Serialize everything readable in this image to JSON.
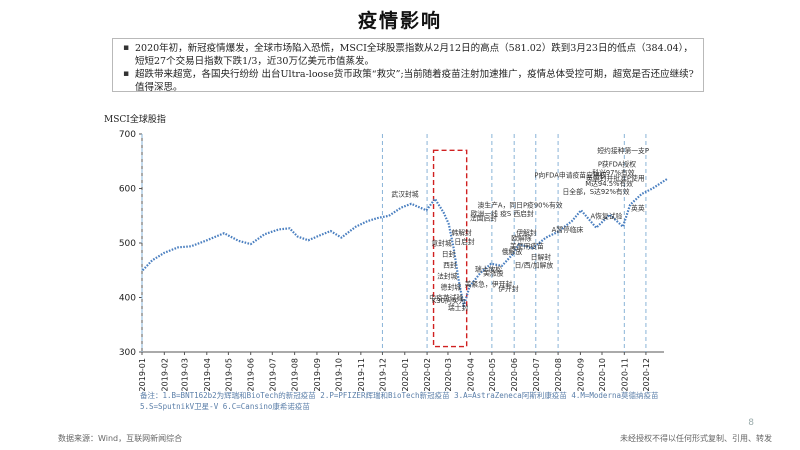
{
  "page": {
    "title": "疫情影响",
    "bullets": [
      "2020年初，新冠疫情爆发，全球市场陷入恐慌，MSCI全球股票指数从2月12日的高点（581.02）跌到3月23日的低点（384.04），短短27个交易日指数下跌1/3，近30万亿美元市值蒸发。",
      "超跌带来超宽，各国央行纷纷 出台Ultra-loose货币政策“救灾”;当前随着疫苗注射加速推广，疫情总体受控可期，超宽是否还应继续?值得深思。"
    ],
    "notes": [
      "备注：1.B=BNT162b2为辉瑞和BioTech的新冠疫苗  2.P=PFIZER辉瑞和BioTech新冠疫苗  3.A=AstraZeneca阿斯利康疫苗  4.M=Moderna莫德纳疫苗",
      "5.S=SputnikV卫星-V 6.C=Cansino康希诺疫苗"
    ],
    "source": "数据来源：Wind，互联网新闻综合",
    "copyright": "未经授权不得以任何形式复制、引用、转发",
    "page_number": "8"
  },
  "chart_data": {
    "type": "line",
    "ylabel": "MSCI全球股指",
    "ylim": [
      300,
      700
    ],
    "yticks": [
      300,
      400,
      500,
      600,
      700
    ],
    "grid": false,
    "line_style": "dotted",
    "colors": {
      "line": "#4a7fc0",
      "vline": "#8ab4d8",
      "box": "#d02020",
      "annotation": "#333333"
    },
    "x_ticks": [
      "2019-01",
      "2019-02",
      "2019-03",
      "2019-04",
      "2019-05",
      "2019-06",
      "2019-07",
      "2019-08",
      "2019-09",
      "2019-10",
      "2019-11",
      "2019-12",
      "2020-01",
      "2020-02",
      "2020-03",
      "2020-04",
      "2020-05",
      "2020-06",
      "2020-07",
      "2020-08",
      "2020-09",
      "2020-10",
      "2020-11",
      "2020-12"
    ],
    "series": [
      {
        "values": [
          {
            "x": "2019-01-02",
            "y": 450
          },
          {
            "x": "2019-01-15",
            "y": 468
          },
          {
            "x": "2019-02-01",
            "y": 482
          },
          {
            "x": "2019-02-20",
            "y": 492
          },
          {
            "x": "2019-03-10",
            "y": 494
          },
          {
            "x": "2019-04-01",
            "y": 505
          },
          {
            "x": "2019-04-25",
            "y": 518
          },
          {
            "x": "2019-05-15",
            "y": 504
          },
          {
            "x": "2019-06-01",
            "y": 498
          },
          {
            "x": "2019-06-20",
            "y": 516
          },
          {
            "x": "2019-07-10",
            "y": 525
          },
          {
            "x": "2019-07-25",
            "y": 527
          },
          {
            "x": "2019-08-05",
            "y": 512
          },
          {
            "x": "2019-08-20",
            "y": 505
          },
          {
            "x": "2019-09-05",
            "y": 514
          },
          {
            "x": "2019-09-20",
            "y": 522
          },
          {
            "x": "2019-10-05",
            "y": 510
          },
          {
            "x": "2019-10-25",
            "y": 530
          },
          {
            "x": "2019-11-10",
            "y": 540
          },
          {
            "x": "2019-11-25",
            "y": 546
          },
          {
            "x": "2019-12-10",
            "y": 550
          },
          {
            "x": "2019-12-27",
            "y": 565
          },
          {
            "x": "2020-01-10",
            "y": 572
          },
          {
            "x": "2020-01-31",
            "y": 560
          },
          {
            "x": "2020-02-12",
            "y": 581
          },
          {
            "x": "2020-02-24",
            "y": 556
          },
          {
            "x": "2020-03-02",
            "y": 535
          },
          {
            "x": "2020-03-09",
            "y": 490
          },
          {
            "x": "2020-03-16",
            "y": 430
          },
          {
            "x": "2020-03-23",
            "y": 384
          },
          {
            "x": "2020-03-31",
            "y": 420
          },
          {
            "x": "2020-04-15",
            "y": 445
          },
          {
            "x": "2020-04-30",
            "y": 462
          },
          {
            "x": "2020-05-15",
            "y": 458
          },
          {
            "x": "2020-05-29",
            "y": 478
          },
          {
            "x": "2020-06-08",
            "y": 498
          },
          {
            "x": "2020-06-26",
            "y": 490
          },
          {
            "x": "2020-07-15",
            "y": 510
          },
          {
            "x": "2020-07-31",
            "y": 520
          },
          {
            "x": "2020-08-20",
            "y": 540
          },
          {
            "x": "2020-09-02",
            "y": 560
          },
          {
            "x": "2020-09-23",
            "y": 528
          },
          {
            "x": "2020-10-12",
            "y": 552
          },
          {
            "x": "2020-10-30",
            "y": 530
          },
          {
            "x": "2020-11-09",
            "y": 570
          },
          {
            "x": "2020-11-25",
            "y": 590
          },
          {
            "x": "2020-12-10",
            "y": 600
          },
          {
            "x": "2020-12-31",
            "y": 618
          }
        ]
      }
    ],
    "vertical_lines": [
      "2019-01",
      "2019-12",
      "2020-02",
      "2020-05",
      "2020-06",
      "2020-07",
      "2020-08",
      "2020-11",
      "2020-12"
    ],
    "highlight_box": {
      "x_start": "2020-02-10",
      "x_end": "2020-03-27",
      "y_low": 310,
      "y_high": 670
    },
    "annotations": [
      {
        "text": "武汉封城",
        "x": "2020-01-23",
        "y": 585
      },
      {
        "text": "意封城",
        "x": "2020-03-09",
        "y": 495
      },
      {
        "text": "日封",
        "x": "2020-03-14",
        "y": 475
      },
      {
        "text": "西封",
        "x": "2020-03-16",
        "y": 455
      },
      {
        "text": "法封城",
        "x": "2020-03-17",
        "y": 435
      },
      {
        "text": "德封城",
        "x": "2020-03-22",
        "y": 415
      },
      {
        "text": "中疫苗试验",
        "x": "2020-03-25",
        "y": 395
      },
      {
        "text": "K30问实为",
        "x": "2020-03-28",
        "y": 390
      },
      {
        "text": "瑞士封",
        "x": "2020-04-01",
        "y": 377
      },
      {
        "text": "韩解封",
        "x": "2020-04-06",
        "y": 515
      },
      {
        "text": "日启封",
        "x": "2020-04-10",
        "y": 498
      },
      {
        "text": "法国启封",
        "x": "2020-05-11",
        "y": 541
      },
      {
        "text": "瑞士放松",
        "x": "2020-05-18",
        "y": 448
      },
      {
        "text": "美涨股",
        "x": "2020-05-20",
        "y": 440
      },
      {
        "text": "美紧急，伊开封",
        "x": "2020-06-01",
        "y": 420
      },
      {
        "text": "伊开封",
        "x": "2020-06-10",
        "y": 412
      },
      {
        "text": "俄解放",
        "x": "2020-06-15",
        "y": 480
      },
      {
        "text": "欧解除",
        "x": "2020-06-28",
        "y": 505
      },
      {
        "text": "伊解封",
        "x": "2020-07-05",
        "y": 515
      },
      {
        "text": "美使用疫苗",
        "x": "2020-07-15",
        "y": 490
      },
      {
        "text": "日解封",
        "x": "2020-07-25",
        "y": 470
      },
      {
        "text": "日/西/加解放",
        "x": "2020-07-28",
        "y": 455
      },
      {
        "text": "欧洲一线 疫S 西启封",
        "x": "2020-07-01",
        "y": 550
      },
      {
        "text": "澳生产A，同日P疫90%有效",
        "x": "2020-08-10",
        "y": 565
      },
      {
        "text": "A暂停临床",
        "x": "2020-09-08",
        "y": 520
      },
      {
        "text": "P向FDA申请疫苗应用权",
        "x": "2020-10-10",
        "y": 620
      },
      {
        "text": "P获FDA授权",
        "x": "2020-11-20",
        "y": 640
      },
      {
        "text": "英英",
        "x": "2020-12-02",
        "y": 560
      },
      {
        "text": "A恢复试验",
        "x": "2020-11-01",
        "y": 545
      },
      {
        "text": "日全部，S达92%有效",
        "x": "2020-11-11",
        "y": 590
      },
      {
        "text": "M达94.5%有效",
        "x": "2020-11-16",
        "y": 605
      },
      {
        "text": "英解封并批准P使用",
        "x": "2020-12-02",
        "y": 615
      },
      {
        "text": "科兴97%有效",
        "x": "2020-11-18",
        "y": 625
      },
      {
        "text": "短约接种第一支P",
        "x": "2020-12-08",
        "y": 665
      }
    ]
  }
}
